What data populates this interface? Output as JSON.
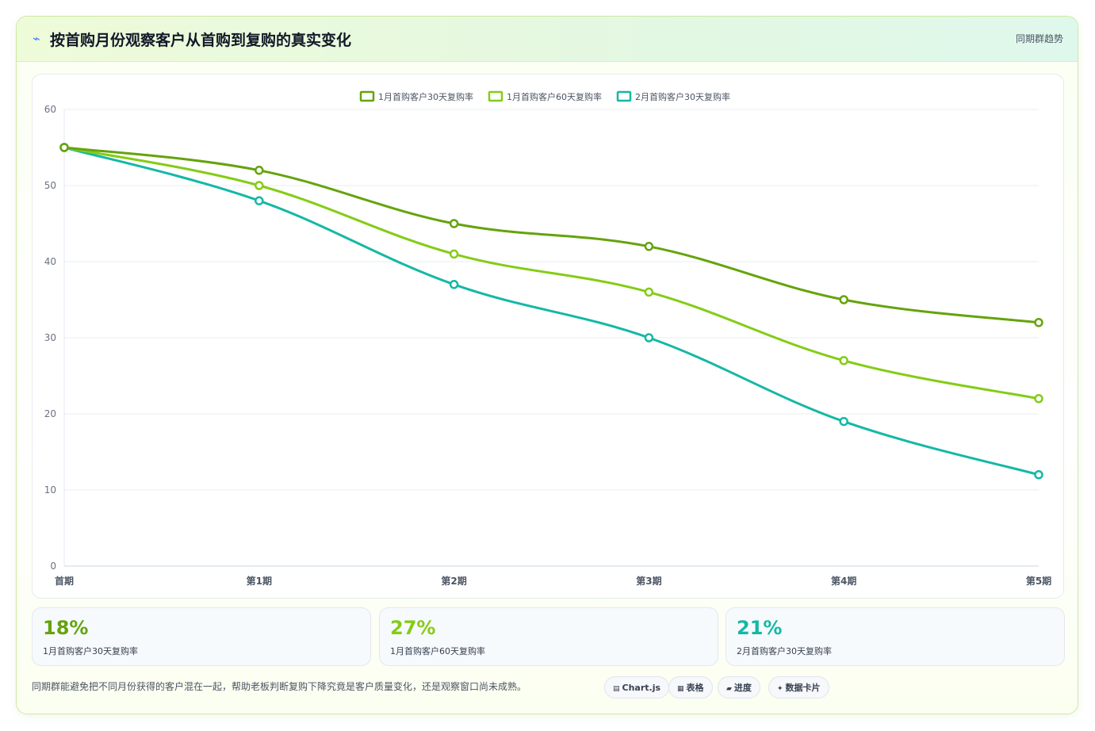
{
  "header": {
    "title": "按首购月份观察客户从首购到复购的真实变化",
    "tag": "同期群趋势"
  },
  "chart_data": {
    "type": "line",
    "categories": [
      "首期",
      "第1期",
      "第2期",
      "第3期",
      "第4期",
      "第5期"
    ],
    "ylim": [
      0,
      60
    ],
    "yticks": [
      0,
      10,
      20,
      30,
      40,
      50,
      60
    ],
    "grid": true,
    "legend_position": "top-center",
    "series": [
      {
        "name": "1月首购客户30天复购率",
        "color": "#65a30d",
        "values": [
          55,
          52,
          45,
          42,
          35,
          32
        ]
      },
      {
        "name": "1月首购客户60天复购率",
        "color": "#84cc16",
        "values": [
          55,
          50,
          41,
          36,
          27,
          22
        ]
      },
      {
        "name": "2月首购客户30天复购率",
        "color": "#14b8a6",
        "values": [
          55,
          48,
          37,
          30,
          19,
          12
        ]
      }
    ]
  },
  "kpis": [
    {
      "value": "18%",
      "label": "1月首购客户30天复购率",
      "color": "#65a30d"
    },
    {
      "value": "27%",
      "label": "1月首购客户60天复购率",
      "color": "#84cc16"
    },
    {
      "value": "21%",
      "label": "2月首购客户30天复购率",
      "color": "#14b8a6"
    }
  ],
  "footnote": "同期群能避免把不同月份获得的客户混在一起，帮助老板判断复购下降究竟是客户质量变化，还是观察窗口尚未成熟。",
  "tags": [
    {
      "icon": "▤",
      "label": "Chart.js"
    },
    {
      "icon": "▦",
      "label": "表格"
    },
    {
      "icon": "▰",
      "label": "进度"
    },
    {
      "icon": "✦",
      "label": "数据卡片"
    }
  ]
}
